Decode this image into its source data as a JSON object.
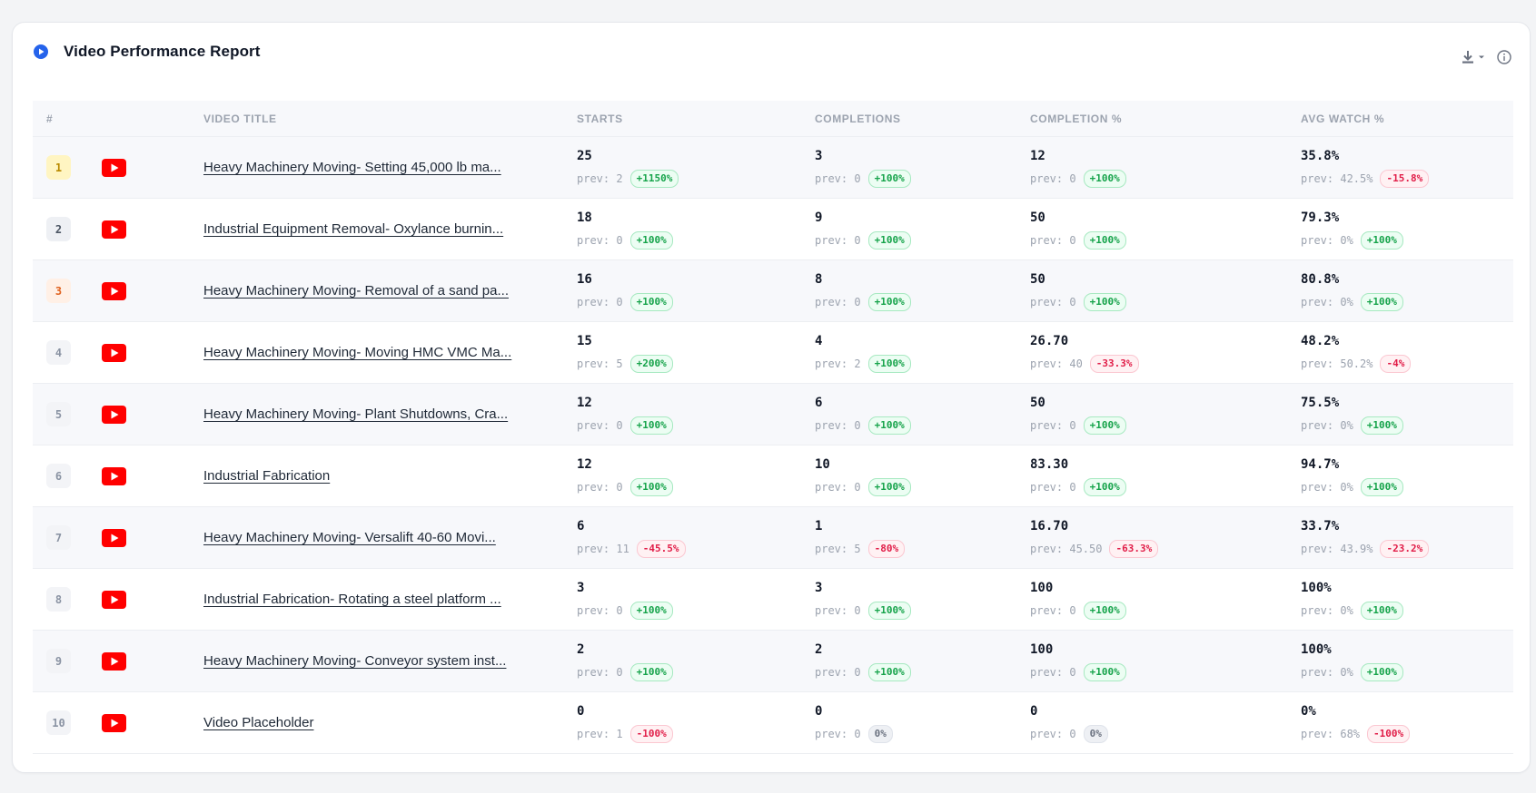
{
  "report": {
    "title": "Video Performance Report",
    "colors": {
      "accent": "#2563eb",
      "youtube": "#ff0000",
      "up": "#15a34a",
      "down": "#e11d48"
    }
  },
  "columns": {
    "rank": "#",
    "title": "VIDEO TITLE",
    "starts": "STARTS",
    "completions": "COMPLETIONS",
    "completion_pct": "COMPLETION %",
    "avg_watch": "AVG WATCH %"
  },
  "rows": [
    {
      "rank": "1",
      "medal": "gold",
      "title": "Heavy Machinery Moving- Setting 45,000 lb ma...",
      "starts": {
        "value": "25",
        "prev": "prev: 2",
        "change": "+1150%",
        "dir": "up"
      },
      "completions": {
        "value": "3",
        "prev": "prev: 0",
        "change": "+100%",
        "dir": "up"
      },
      "completion_pct": {
        "value": "12",
        "prev": "prev: 0",
        "change": "+100%",
        "dir": "up"
      },
      "avg_watch": {
        "value": "35.8%",
        "prev": "prev: 42.5%",
        "change": "-15.8%",
        "dir": "down"
      }
    },
    {
      "rank": "2",
      "medal": "silver",
      "title": "Industrial Equipment Removal- Oxylance burnin...",
      "starts": {
        "value": "18",
        "prev": "prev: 0",
        "change": "+100%",
        "dir": "up"
      },
      "completions": {
        "value": "9",
        "prev": "prev: 0",
        "change": "+100%",
        "dir": "up"
      },
      "completion_pct": {
        "value": "50",
        "prev": "prev: 0",
        "change": "+100%",
        "dir": "up"
      },
      "avg_watch": {
        "value": "79.3%",
        "prev": "prev: 0%",
        "change": "+100%",
        "dir": "up"
      }
    },
    {
      "rank": "3",
      "medal": "bronze",
      "title": "Heavy Machinery Moving- Removal of a sand pa...",
      "starts": {
        "value": "16",
        "prev": "prev: 0",
        "change": "+100%",
        "dir": "up"
      },
      "completions": {
        "value": "8",
        "prev": "prev: 0",
        "change": "+100%",
        "dir": "up"
      },
      "completion_pct": {
        "value": "50",
        "prev": "prev: 0",
        "change": "+100%",
        "dir": "up"
      },
      "avg_watch": {
        "value": "80.8%",
        "prev": "prev: 0%",
        "change": "+100%",
        "dir": "up"
      }
    },
    {
      "rank": "4",
      "medal": "plain",
      "title": "Heavy Machinery Moving- Moving HMC VMC Ma...",
      "starts": {
        "value": "15",
        "prev": "prev: 5",
        "change": "+200%",
        "dir": "up"
      },
      "completions": {
        "value": "4",
        "prev": "prev: 2",
        "change": "+100%",
        "dir": "up"
      },
      "completion_pct": {
        "value": "26.70",
        "prev": "prev: 40",
        "change": "-33.3%",
        "dir": "down"
      },
      "avg_watch": {
        "value": "48.2%",
        "prev": "prev: 50.2%",
        "change": "-4%",
        "dir": "down"
      }
    },
    {
      "rank": "5",
      "medal": "plain",
      "title": "Heavy Machinery Moving- Plant Shutdowns, Cra...",
      "starts": {
        "value": "12",
        "prev": "prev: 0",
        "change": "+100%",
        "dir": "up"
      },
      "completions": {
        "value": "6",
        "prev": "prev: 0",
        "change": "+100%",
        "dir": "up"
      },
      "completion_pct": {
        "value": "50",
        "prev": "prev: 0",
        "change": "+100%",
        "dir": "up"
      },
      "avg_watch": {
        "value": "75.5%",
        "prev": "prev: 0%",
        "change": "+100%",
        "dir": "up"
      }
    },
    {
      "rank": "6",
      "medal": "plain",
      "title": "Industrial Fabrication",
      "starts": {
        "value": "12",
        "prev": "prev: 0",
        "change": "+100%",
        "dir": "up"
      },
      "completions": {
        "value": "10",
        "prev": "prev: 0",
        "change": "+100%",
        "dir": "up"
      },
      "completion_pct": {
        "value": "83.30",
        "prev": "prev: 0",
        "change": "+100%",
        "dir": "up"
      },
      "avg_watch": {
        "value": "94.7%",
        "prev": "prev: 0%",
        "change": "+100%",
        "dir": "up"
      }
    },
    {
      "rank": "7",
      "medal": "plain",
      "title": "Heavy Machinery Moving- Versalift 40-60 Movi...",
      "starts": {
        "value": "6",
        "prev": "prev: 11",
        "change": "-45.5%",
        "dir": "down"
      },
      "completions": {
        "value": "1",
        "prev": "prev: 5",
        "change": "-80%",
        "dir": "down"
      },
      "completion_pct": {
        "value": "16.70",
        "prev": "prev: 45.50",
        "change": "-63.3%",
        "dir": "down"
      },
      "avg_watch": {
        "value": "33.7%",
        "prev": "prev: 43.9%",
        "change": "-23.2%",
        "dir": "down"
      }
    },
    {
      "rank": "8",
      "medal": "plain",
      "title": "Industrial Fabrication- Rotating a steel platform ...",
      "starts": {
        "value": "3",
        "prev": "prev: 0",
        "change": "+100%",
        "dir": "up"
      },
      "completions": {
        "value": "3",
        "prev": "prev: 0",
        "change": "+100%",
        "dir": "up"
      },
      "completion_pct": {
        "value": "100",
        "prev": "prev: 0",
        "change": "+100%",
        "dir": "up"
      },
      "avg_watch": {
        "value": "100%",
        "prev": "prev: 0%",
        "change": "+100%",
        "dir": "up"
      }
    },
    {
      "rank": "9",
      "medal": "plain",
      "title": "Heavy Machinery Moving- Conveyor system inst...",
      "starts": {
        "value": "2",
        "prev": "prev: 0",
        "change": "+100%",
        "dir": "up"
      },
      "completions": {
        "value": "2",
        "prev": "prev: 0",
        "change": "+100%",
        "dir": "up"
      },
      "completion_pct": {
        "value": "100",
        "prev": "prev: 0",
        "change": "+100%",
        "dir": "up"
      },
      "avg_watch": {
        "value": "100%",
        "prev": "prev: 0%",
        "change": "+100%",
        "dir": "up"
      }
    },
    {
      "rank": "10",
      "medal": "plain",
      "title": "Video Placeholder",
      "starts": {
        "value": "0",
        "prev": "prev: 1",
        "change": "-100%",
        "dir": "down"
      },
      "completions": {
        "value": "0",
        "prev": "prev: 0",
        "change": "0%",
        "dir": "flat"
      },
      "completion_pct": {
        "value": "0",
        "prev": "prev: 0",
        "change": "0%",
        "dir": "flat"
      },
      "avg_watch": {
        "value": "0%",
        "prev": "prev: 68%",
        "change": "-100%",
        "dir": "down"
      }
    }
  ]
}
